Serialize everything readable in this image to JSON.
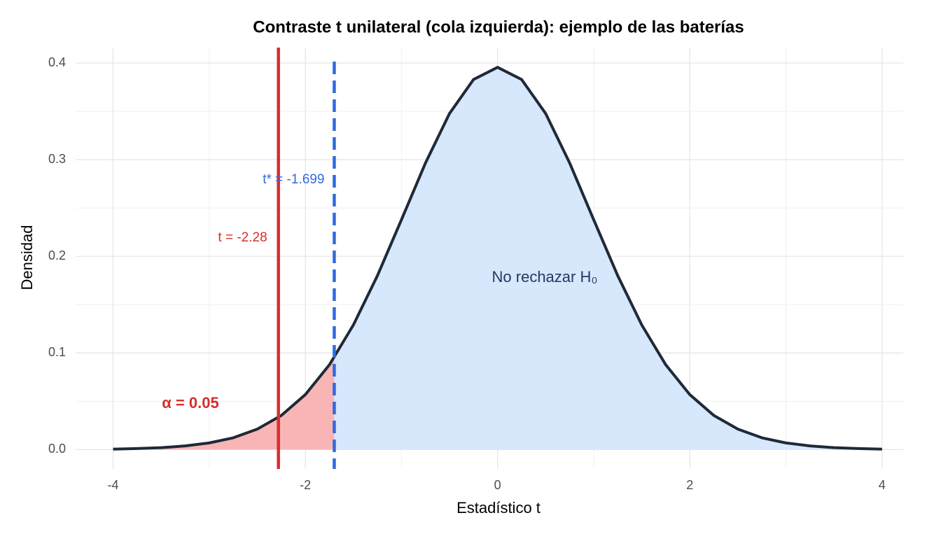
{
  "chart_data": {
    "type": "density",
    "title": "Contraste t unilateral (cola izquierda): ejemplo de las baterías",
    "x_label": "Estadístico t",
    "y_label": "Densidad",
    "x": [
      -4,
      -3.75,
      -3.5,
      -3.25,
      -3,
      -2.75,
      -2.5,
      -2.25,
      -2,
      -1.75,
      -1.5,
      -1.25,
      -1,
      -0.75,
      -0.5,
      -0.25,
      0,
      0.25,
      0.5,
      0.75,
      1,
      1.25,
      1.5,
      1.75,
      2,
      2.25,
      2.5,
      2.75,
      3,
      3.25,
      3.5,
      3.75,
      4
    ],
    "values": [
      0.0005,
      0.0011,
      0.002,
      0.0038,
      0.0069,
      0.0122,
      0.0212,
      0.0353,
      0.0569,
      0.0877,
      0.129,
      0.18,
      0.2379,
      0.2966,
      0.3478,
      0.383,
      0.3956,
      0.383,
      0.3478,
      0.2966,
      0.2379,
      0.18,
      0.129,
      0.0877,
      0.0569,
      0.0353,
      0.0212,
      0.0122,
      0.0069,
      0.0038,
      0.002,
      0.0011,
      0.0005
    ],
    "color": "#1f2937",
    "critical_value": -1.699,
    "critical_label": "t* = -1.699",
    "critical_color": "#2f6ae0",
    "t_stat": -2.28,
    "t_stat_label": "t = -2.28",
    "t_stat_color": "#d62e2e",
    "alpha_label": "α = 0.05",
    "accept_label": "No rechazar H₀",
    "reject_fill": "#f9b5b5",
    "accept_fill": "#d7e7fc",
    "xlim": [
      -4.39,
      4.22
    ],
    "ylim": [
      -0.02,
      0.416
    ],
    "xticks": [
      -4,
      -2,
      0,
      2,
      4
    ],
    "yticks": [
      {
        "value": 0,
        "label": "0.0"
      },
      0.1,
      0.2,
      0.3,
      0.4
    ],
    "grid": true
  }
}
